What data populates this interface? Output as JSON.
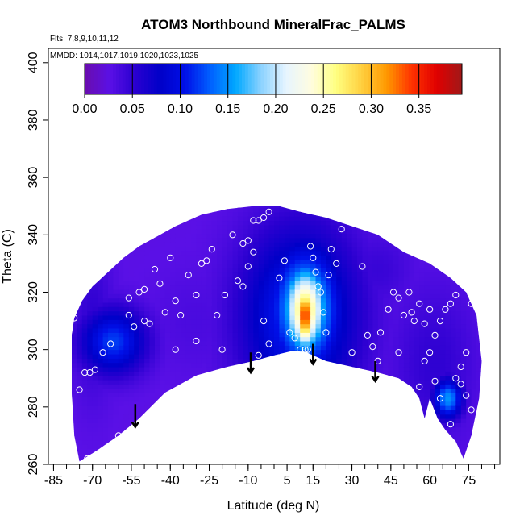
{
  "chart_data": {
    "type": "heatmap",
    "title": "ATOM3 Northbound MineralFrac_PALMS",
    "flights_label": "Flts: 7,8,9,10,11,12",
    "mmdd_label": "MMDD: 1014,1017,1019,1020,1023,1025",
    "xlabel": "Latitude (deg N)",
    "ylabel": "Theta (C)",
    "xlim": [
      -87,
      87
    ],
    "ylim": [
      260,
      405
    ],
    "xticks": [
      -85,
      -70,
      -55,
      -40,
      -25,
      -10,
      5,
      15,
      30,
      45,
      60,
      75
    ],
    "yticks": [
      260,
      280,
      300,
      320,
      340,
      360,
      380,
      400
    ],
    "colorbar": {
      "min": 0.0,
      "max": 0.395,
      "ticks": [
        0.0,
        0.05,
        0.1,
        0.15,
        0.2,
        0.25,
        0.3,
        0.35
      ],
      "tick_labels": [
        "0.00",
        "0.05",
        "0.10",
        "0.15",
        "0.20",
        "0.25",
        "0.30",
        "0.35"
      ],
      "colors": [
        "#6a0dad",
        "#5a10e6",
        "#2a00d0",
        "#0000c8",
        "#0010e8",
        "#0060ff",
        "#00a8ff",
        "#8ad2ff",
        "#e6f4ff",
        "#fffde0",
        "#ffff80",
        "#ffd040",
        "#ff9900",
        "#ff3300",
        "#e00000",
        "#a01818"
      ]
    },
    "grid": false,
    "field_boundary": [
      [
        -78,
        285
      ],
      [
        -77,
        270
      ],
      [
        -75,
        261
      ],
      [
        -68,
        265
      ],
      [
        -60,
        270
      ],
      [
        -52,
        276
      ],
      [
        -42,
        285
      ],
      [
        -30,
        291
      ],
      [
        -18,
        294
      ],
      [
        -8,
        296
      ],
      [
        0,
        298
      ],
      [
        7,
        299.5
      ],
      [
        12,
        299.2
      ],
      [
        20,
        296
      ],
      [
        30,
        294
      ],
      [
        40,
        292
      ],
      [
        48,
        290
      ],
      [
        53,
        287
      ],
      [
        56,
        283
      ],
      [
        58,
        276
      ],
      [
        60,
        283
      ],
      [
        63,
        276
      ],
      [
        66,
        272
      ],
      [
        70,
        268
      ],
      [
        73,
        262
      ],
      [
        76,
        270
      ],
      [
        79,
        283
      ],
      [
        80,
        296
      ],
      [
        78,
        312
      ],
      [
        74,
        320
      ],
      [
        68,
        325
      ],
      [
        60,
        330
      ],
      [
        50,
        334
      ],
      [
        40,
        340
      ],
      [
        30,
        343
      ],
      [
        20,
        346
      ],
      [
        10,
        348
      ],
      [
        2,
        350
      ],
      [
        -8,
        350
      ],
      [
        -18,
        349
      ],
      [
        -28,
        347
      ],
      [
        -38,
        343
      ],
      [
        -46,
        339
      ],
      [
        -52,
        336
      ],
      [
        -58,
        332
      ],
      [
        -64,
        327
      ],
      [
        -70,
        322
      ],
      [
        -74,
        317
      ],
      [
        -77,
        311
      ],
      [
        -78,
        305
      ],
      [
        -78,
        295
      ]
    ],
    "field_features": [
      {
        "x": 12,
        "y": 312,
        "value": 0.35,
        "sx": 3,
        "sy": 8
      },
      {
        "x": 12,
        "y": 314,
        "value": 0.28,
        "sx": 6,
        "sy": 11
      },
      {
        "x": 12,
        "y": 314,
        "value": 0.18,
        "sx": 10,
        "sy": 16
      },
      {
        "x": 10,
        "y": 312,
        "value": 0.12,
        "sx": 16,
        "sy": 22
      },
      {
        "x": -62,
        "y": 303,
        "value": 0.12,
        "sx": 9,
        "sy": 8
      },
      {
        "x": 67,
        "y": 283,
        "value": 0.15,
        "sx": 4,
        "sy": 5
      },
      {
        "x": 28,
        "y": 312,
        "value": 0.05,
        "sx": 12,
        "sy": 16
      },
      {
        "x": -70,
        "y": 310,
        "value": 0.05,
        "sx": 6,
        "sy": 20
      },
      {
        "x": 40,
        "y": 328,
        "value": 0.045,
        "sx": 10,
        "sy": 10
      },
      {
        "x": 62,
        "y": 295,
        "value": 0.05,
        "sx": 12,
        "sy": 20
      },
      {
        "x": -30,
        "y": 310,
        "value": 0.035,
        "sx": 14,
        "sy": 14
      }
    ],
    "background_value": 0.025,
    "observations": [
      [
        -77,
        311
      ],
      [
        -75,
        286
      ],
      [
        -73,
        292
      ],
      [
        -71,
        292
      ],
      [
        -69,
        293
      ],
      [
        -72,
        262
      ],
      [
        -66,
        299
      ],
      [
        -63,
        302
      ],
      [
        -60,
        270
      ],
      [
        -59,
        335
      ],
      [
        -56,
        318
      ],
      [
        -54,
        308
      ],
      [
        -52,
        320
      ],
      [
        -50,
        321
      ],
      [
        -48,
        309
      ],
      [
        -46,
        328
      ],
      [
        -44,
        323
      ],
      [
        -42,
        313
      ],
      [
        -40,
        332
      ],
      [
        -38,
        317
      ],
      [
        -36,
        312
      ],
      [
        -33,
        326
      ],
      [
        -30,
        319
      ],
      [
        -28,
        330
      ],
      [
        -26,
        331
      ],
      [
        -24,
        335
      ],
      [
        -22,
        312
      ],
      [
        -19,
        319
      ],
      [
        -16,
        340
      ],
      [
        -14,
        324
      ],
      [
        -12,
        322
      ],
      [
        -10,
        329
      ],
      [
        -8,
        345
      ],
      [
        -6,
        345
      ],
      [
        -4,
        346
      ],
      [
        -2,
        348
      ],
      [
        -12,
        337
      ],
      [
        -10,
        338
      ],
      [
        -8,
        334
      ],
      [
        -6,
        298
      ],
      [
        -2,
        302
      ],
      [
        2,
        325
      ],
      [
        4,
        331
      ],
      [
        6,
        306
      ],
      [
        8,
        304
      ],
      [
        10,
        300
      ],
      [
        12,
        300
      ],
      [
        13,
        300
      ],
      [
        14,
        336
      ],
      [
        15,
        332
      ],
      [
        16,
        327
      ],
      [
        17,
        322
      ],
      [
        18,
        320
      ],
      [
        19,
        313
      ],
      [
        20,
        306
      ],
      [
        21,
        326
      ],
      [
        22,
        335
      ],
      [
        24,
        330
      ],
      [
        26,
        342
      ],
      [
        28,
        345
      ],
      [
        30,
        348
      ],
      [
        32,
        348
      ],
      [
        34,
        329
      ],
      [
        36,
        305
      ],
      [
        38,
        301
      ],
      [
        40,
        296
      ],
      [
        42,
        289
      ],
      [
        44,
        314
      ],
      [
        46,
        320
      ],
      [
        48,
        299
      ],
      [
        50,
        312
      ],
      [
        52,
        320
      ],
      [
        54,
        310
      ],
      [
        56,
        316
      ],
      [
        58,
        296
      ],
      [
        60,
        299
      ],
      [
        62,
        305
      ],
      [
        64,
        310
      ],
      [
        66,
        314
      ],
      [
        68,
        316
      ],
      [
        70,
        319
      ],
      [
        72,
        294
      ],
      [
        74,
        299
      ],
      [
        76,
        316
      ],
      [
        78,
        318
      ],
      [
        -30,
        303
      ],
      [
        -38,
        300
      ],
      [
        -50,
        310
      ],
      [
        -56,
        312
      ],
      [
        -20,
        300
      ],
      [
        -4,
        310
      ],
      [
        20,
        292
      ],
      [
        30,
        299
      ],
      [
        46,
        285
      ],
      [
        50,
        286
      ],
      [
        56,
        287
      ],
      [
        62,
        289
      ],
      [
        64,
        283
      ],
      [
        68,
        274
      ],
      [
        70,
        290
      ],
      [
        72,
        288
      ],
      [
        74,
        284
      ],
      [
        76,
        279
      ],
      [
        58,
        309
      ],
      [
        60,
        314
      ],
      [
        53,
        313
      ],
      [
        48,
        318
      ],
      [
        41,
        306
      ]
    ],
    "arrows": [
      {
        "x": -53.5,
        "y_top": 281,
        "y_bottom": 273
      },
      {
        "x": -9,
        "y_top": 299,
        "y_bottom": 292
      },
      {
        "x": 15,
        "y_top": 302,
        "y_bottom": 295
      },
      {
        "x": 39,
        "y_top": 296,
        "y_bottom": 289
      }
    ]
  }
}
